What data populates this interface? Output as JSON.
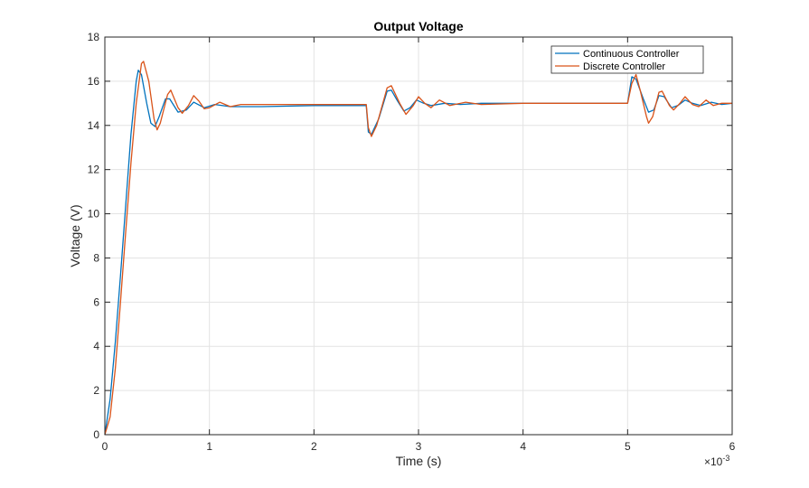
{
  "chart_data": {
    "type": "line",
    "title": "Output Voltage",
    "xlabel": "Time (s)",
    "ylabel": "Voltage (V)",
    "x_exponent_label": "×10",
    "x_exponent_power": "-3",
    "xlim": [
      0,
      6
    ],
    "ylim": [
      0,
      18
    ],
    "x_unit_scale": 0.001,
    "xticks": [
      0,
      1,
      2,
      3,
      4,
      5,
      6
    ],
    "xtick_labels": [
      "0",
      "1",
      "2",
      "3",
      "4",
      "5",
      "6"
    ],
    "yticks": [
      0,
      2,
      4,
      6,
      8,
      10,
      12,
      14,
      16,
      18
    ],
    "ytick_labels": [
      "0",
      "2",
      "4",
      "6",
      "8",
      "10",
      "12",
      "14",
      "16",
      "18"
    ],
    "grid": true,
    "legend_position": "top-right",
    "series": [
      {
        "name": "Continuous Controller",
        "color": "#0072BD",
        "points": [
          [
            0,
            0
          ],
          [
            0.05,
            1.6
          ],
          [
            0.1,
            4.2
          ],
          [
            0.15,
            7.2
          ],
          [
            0.2,
            10.4
          ],
          [
            0.25,
            13.6
          ],
          [
            0.3,
            16.0
          ],
          [
            0.32,
            16.5
          ],
          [
            0.35,
            16.3
          ],
          [
            0.4,
            15.0
          ],
          [
            0.44,
            14.1
          ],
          [
            0.48,
            13.95
          ],
          [
            0.52,
            14.4
          ],
          [
            0.58,
            15.2
          ],
          [
            0.62,
            15.2
          ],
          [
            0.7,
            14.6
          ],
          [
            0.78,
            14.7
          ],
          [
            0.85,
            15.05
          ],
          [
            0.95,
            14.8
          ],
          [
            1.05,
            14.95
          ],
          [
            1.2,
            14.85
          ],
          [
            1.5,
            14.85
          ],
          [
            2.0,
            14.9
          ],
          [
            2.5,
            14.9
          ],
          [
            2.52,
            13.7
          ],
          [
            2.55,
            13.6
          ],
          [
            2.62,
            14.3
          ],
          [
            2.7,
            15.55
          ],
          [
            2.74,
            15.6
          ],
          [
            2.8,
            15.1
          ],
          [
            2.86,
            14.65
          ],
          [
            2.92,
            14.8
          ],
          [
            2.98,
            15.15
          ],
          [
            3.05,
            15.0
          ],
          [
            3.12,
            14.9
          ],
          [
            3.25,
            15.0
          ],
          [
            3.4,
            14.95
          ],
          [
            3.6,
            15.0
          ],
          [
            4.0,
            15.0
          ],
          [
            4.5,
            15.0
          ],
          [
            5.0,
            15.0
          ],
          [
            5.04,
            16.2
          ],
          [
            5.08,
            16.1
          ],
          [
            5.15,
            15.2
          ],
          [
            5.2,
            14.6
          ],
          [
            5.25,
            14.7
          ],
          [
            5.3,
            15.35
          ],
          [
            5.35,
            15.3
          ],
          [
            5.42,
            14.8
          ],
          [
            5.48,
            14.9
          ],
          [
            5.55,
            15.15
          ],
          [
            5.62,
            15.0
          ],
          [
            5.7,
            14.9
          ],
          [
            5.8,
            15.05
          ],
          [
            5.9,
            14.95
          ],
          [
            6.0,
            15.0
          ]
        ]
      },
      {
        "name": "Discrete Controller",
        "color": "#D95319",
        "points": [
          [
            0,
            0
          ],
          [
            0.05,
            0.8
          ],
          [
            0.1,
            3.0
          ],
          [
            0.15,
            6.0
          ],
          [
            0.2,
            9.2
          ],
          [
            0.25,
            12.3
          ],
          [
            0.3,
            15.0
          ],
          [
            0.35,
            16.8
          ],
          [
            0.37,
            16.9
          ],
          [
            0.42,
            16.0
          ],
          [
            0.47,
            14.3
          ],
          [
            0.5,
            13.8
          ],
          [
            0.53,
            14.1
          ],
          [
            0.6,
            15.4
          ],
          [
            0.63,
            15.6
          ],
          [
            0.7,
            14.8
          ],
          [
            0.74,
            14.55
          ],
          [
            0.8,
            14.9
          ],
          [
            0.85,
            15.35
          ],
          [
            0.9,
            15.1
          ],
          [
            0.95,
            14.75
          ],
          [
            1.0,
            14.8
          ],
          [
            1.1,
            15.05
          ],
          [
            1.2,
            14.85
          ],
          [
            1.3,
            14.95
          ],
          [
            1.5,
            14.95
          ],
          [
            2.0,
            14.95
          ],
          [
            2.5,
            14.95
          ],
          [
            2.52,
            13.9
          ],
          [
            2.55,
            13.5
          ],
          [
            2.6,
            14.0
          ],
          [
            2.7,
            15.7
          ],
          [
            2.74,
            15.8
          ],
          [
            2.82,
            15.0
          ],
          [
            2.88,
            14.5
          ],
          [
            2.95,
            14.9
          ],
          [
            3.0,
            15.3
          ],
          [
            3.06,
            15.0
          ],
          [
            3.12,
            14.8
          ],
          [
            3.2,
            15.15
          ],
          [
            3.3,
            14.9
          ],
          [
            3.45,
            15.05
          ],
          [
            3.6,
            14.95
          ],
          [
            4.0,
            15.0
          ],
          [
            4.5,
            15.0
          ],
          [
            5.0,
            15.0
          ],
          [
            5.04,
            15.9
          ],
          [
            5.08,
            16.3
          ],
          [
            5.12,
            15.6
          ],
          [
            5.18,
            14.4
          ],
          [
            5.2,
            14.1
          ],
          [
            5.24,
            14.4
          ],
          [
            5.3,
            15.5
          ],
          [
            5.33,
            15.55
          ],
          [
            5.4,
            14.9
          ],
          [
            5.44,
            14.7
          ],
          [
            5.5,
            15.0
          ],
          [
            5.55,
            15.3
          ],
          [
            5.62,
            14.95
          ],
          [
            5.68,
            14.85
          ],
          [
            5.75,
            15.15
          ],
          [
            5.82,
            14.9
          ],
          [
            5.9,
            15.0
          ],
          [
            6.0,
            15.0
          ]
        ]
      }
    ]
  }
}
